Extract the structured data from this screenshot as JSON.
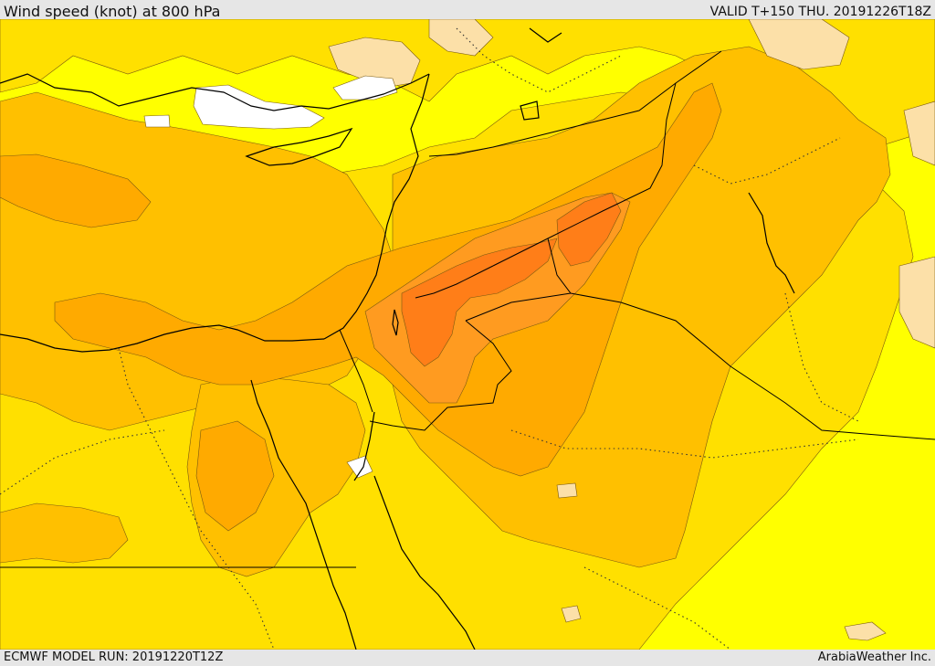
{
  "header": {
    "title": "Wind speed (knot) at 800 hPa",
    "valid": "VALID T+150 THU. 20191226T18Z"
  },
  "footer": {
    "model_run": "ECMWF MODEL RUN: 20191220T12Z",
    "credit": "ArabiaWeather Inc."
  },
  "colors": {
    "band_lowest": "#ffffff",
    "band_1": "#fce0a8",
    "band_2": "#ffff00",
    "band_3": "#ffe000",
    "band_4": "#ffc000",
    "band_5": "#ffaa00",
    "band_6": "#ff9b20",
    "band_7": "#ff7e18"
  }
}
